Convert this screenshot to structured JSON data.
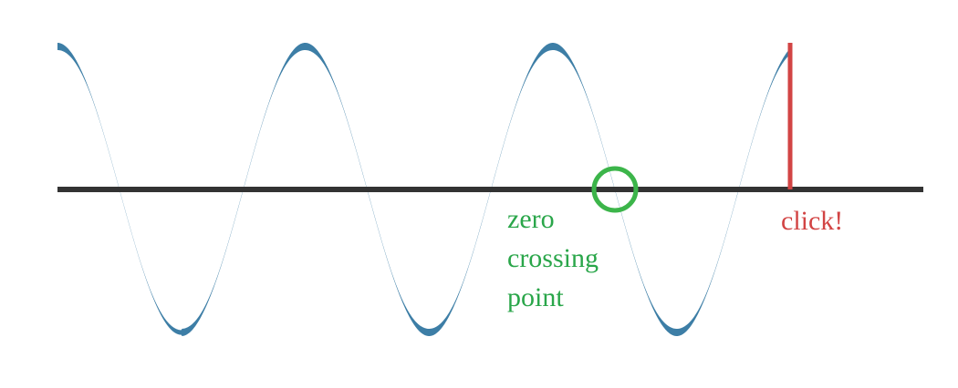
{
  "annotations": {
    "zero_crossing": {
      "lines": [
        "zero",
        "crossing",
        "point"
      ],
      "color": "#2aa64a",
      "marker_color": "#3cb54a"
    },
    "click": {
      "text": "click!",
      "color": "#d24444"
    }
  },
  "colors": {
    "wave": "#3d7ea6",
    "axis": "#333333"
  }
}
